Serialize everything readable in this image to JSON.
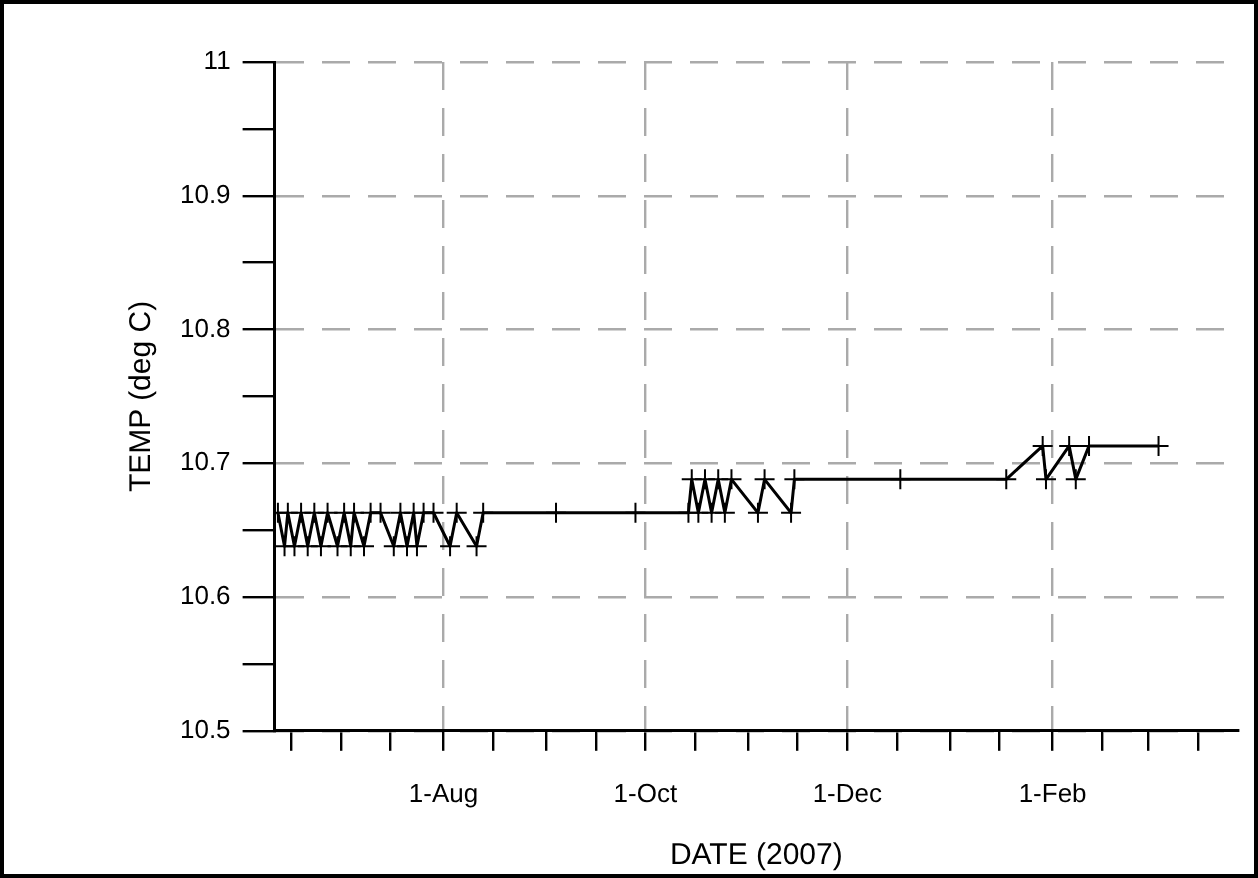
{
  "chart_data": {
    "type": "line",
    "xlabel": "DATE (2007)",
    "ylabel": "TEMP (deg C)",
    "grid": true,
    "marker": "cross",
    "line_style": "solid",
    "xlim": [
      "2007-06-11",
      "2008-03-28"
    ],
    "xticks": [
      {
        "value": "2007-06-16",
        "label": null
      },
      {
        "value": "2007-07-01",
        "label": null
      },
      {
        "value": "2007-07-16",
        "label": null
      },
      {
        "value": "2007-08-01",
        "label": "1-Aug"
      },
      {
        "value": "2007-08-16",
        "label": null
      },
      {
        "value": "2007-09-01",
        "label": null
      },
      {
        "value": "2007-09-16",
        "label": null
      },
      {
        "value": "2007-10-01",
        "label": "1-Oct"
      },
      {
        "value": "2007-10-16",
        "label": null
      },
      {
        "value": "2007-11-01",
        "label": null
      },
      {
        "value": "2007-11-16",
        "label": null
      },
      {
        "value": "2007-12-01",
        "label": "1-Dec"
      },
      {
        "value": "2007-12-16",
        "label": null
      },
      {
        "value": "2008-01-01",
        "label": null
      },
      {
        "value": "2008-01-16",
        "label": null
      },
      {
        "value": "2008-02-01",
        "label": "1-Feb"
      },
      {
        "value": "2008-02-16",
        "label": null
      },
      {
        "value": "2008-03-01",
        "label": null
      },
      {
        "value": "2008-03-16",
        "label": null
      }
    ],
    "ylim": [
      10.5,
      11
    ],
    "yticks": [
      10.5,
      {
        "value": 10.55,
        "label": null
      },
      10.6,
      {
        "value": 10.65,
        "label": null
      },
      10.7,
      {
        "value": 10.75,
        "label": null
      },
      10.8,
      {
        "value": 10.85,
        "label": null
      },
      10.9,
      {
        "value": 10.95,
        "label": null
      },
      11
    ],
    "x": [
      "2007-06-12",
      "2007-06-14",
      "2007-06-15",
      "2007-06-17",
      "2007-06-19",
      "2007-06-21",
      "2007-06-23",
      "2007-06-25",
      "2007-06-27",
      "2007-06-30",
      "2007-07-02",
      "2007-07-04",
      "2007-07-05",
      "2007-07-08",
      "2007-07-10",
      "2007-07-13",
      "2007-07-17",
      "2007-07-19",
      "2007-07-21",
      "2007-07-23",
      "2007-07-24",
      "2007-07-26",
      "2007-07-29",
      "2007-08-03",
      "2007-08-05",
      "2007-08-11",
      "2007-08-13",
      "2007-09-04",
      "2007-09-28",
      "2007-10-14",
      "2007-10-15",
      "2007-10-17",
      "2007-10-19",
      "2007-10-21",
      "2007-10-23",
      "2007-10-25",
      "2007-10-27",
      "2007-11-04",
      "2007-11-06",
      "2007-11-14",
      "2007-11-15",
      "2007-12-17",
      "2008-01-18",
      "2008-01-29",
      "2008-01-30",
      "2008-02-06",
      "2008-02-08",
      "2008-02-12",
      "2008-03-04"
    ],
    "series": [
      {
        "color": "#000000",
        "values": [
          10.663,
          10.638,
          10.663,
          10.638,
          10.663,
          10.638,
          10.663,
          10.638,
          10.663,
          10.638,
          10.663,
          10.638,
          10.663,
          10.638,
          10.663,
          10.663,
          10.638,
          10.663,
          10.638,
          10.663,
          10.638,
          10.663,
          10.663,
          10.638,
          10.663,
          10.638,
          10.663,
          10.663,
          10.663,
          10.663,
          10.688,
          10.663,
          10.688,
          10.663,
          10.688,
          10.663,
          10.688,
          10.663,
          10.688,
          10.663,
          10.688,
          10.688,
          10.688,
          10.713,
          10.688,
          10.713,
          10.688,
          10.713,
          10.713
        ]
      }
    ]
  }
}
